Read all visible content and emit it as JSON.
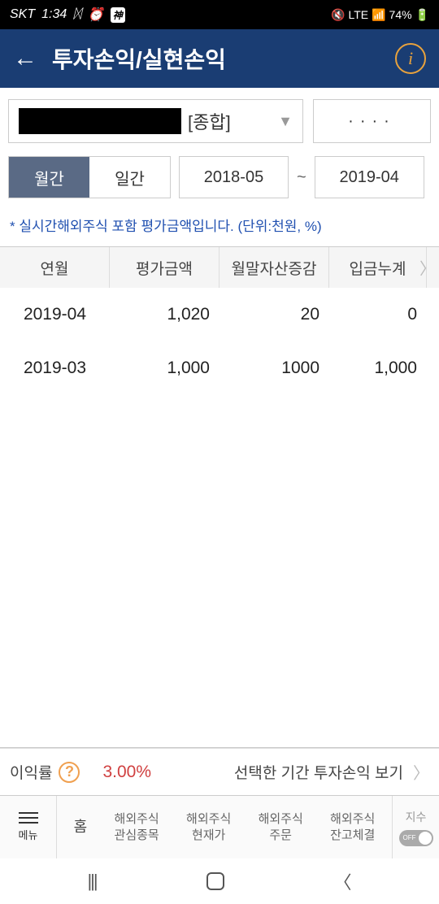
{
  "status": {
    "carrier": "SKT",
    "time": "1:34",
    "lte": "LTE",
    "battery": "74%",
    "badge": "神"
  },
  "header": {
    "title": "투자손익/실현손익"
  },
  "account": {
    "type_label": "[종합]",
    "pin": "····"
  },
  "tabs": {
    "monthly": "월간",
    "daily": "일간"
  },
  "date": {
    "from": "2018-05",
    "to": "2019-04",
    "sep": "~"
  },
  "note": "* 실시간해외주식 포함 평가금액입니다. (단위:천원, %)",
  "table": {
    "headers": {
      "c1": "연월",
      "c2": "평가금액",
      "c3": "월말자산증감",
      "c4": "입금누계"
    },
    "rows": [
      {
        "c1": "2019-04",
        "c2": "1,020",
        "c3": "20",
        "c4": "0"
      },
      {
        "c1": "2019-03",
        "c2": "1,000",
        "c3": "1000",
        "c4": "1,000"
      }
    ]
  },
  "summary": {
    "label": "이익률",
    "value": "3.00%",
    "link": "선택한 기간 투자손익 보기"
  },
  "nav": {
    "menu": "메뉴",
    "home": "홈",
    "items": [
      {
        "l1": "해외주식",
        "l2": "관심종목"
      },
      {
        "l1": "해외주식",
        "l2": "현재가"
      },
      {
        "l1": "해외주식",
        "l2": "주문"
      },
      {
        "l1": "해외주식",
        "l2": "잔고체결"
      }
    ],
    "index_label": "지수",
    "toggle": "OFF"
  }
}
